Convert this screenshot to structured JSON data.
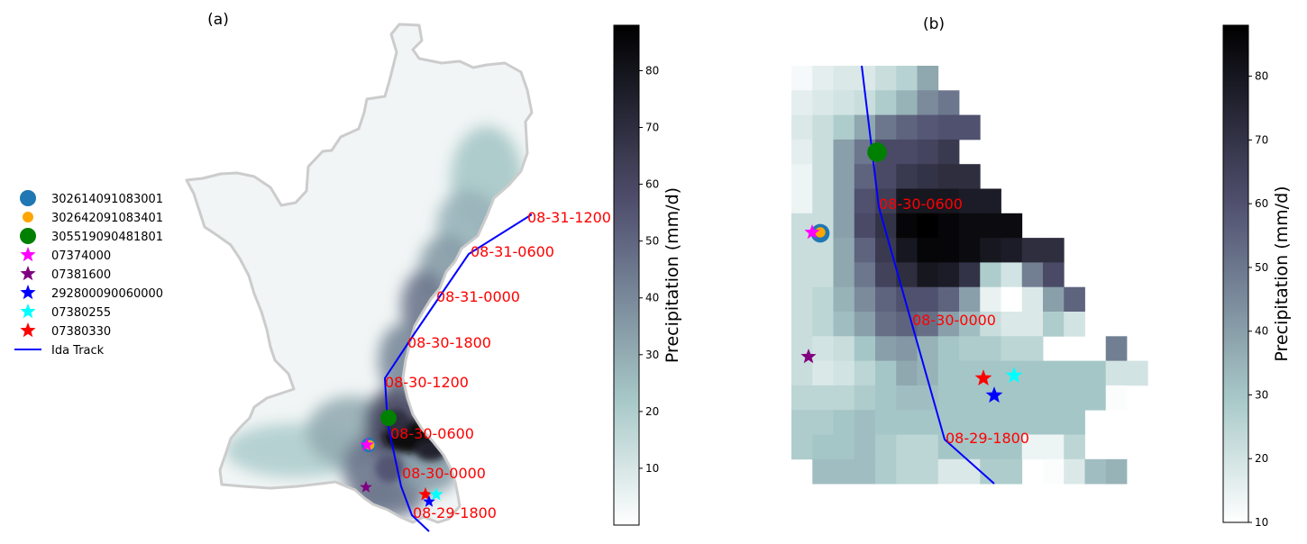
{
  "colors": {
    "track": "#0000ff",
    "track_label": "#ff0000",
    "basin_outline": "#cccccc",
    "colormap": "bone_r"
  },
  "legend": {
    "items": [
      {
        "label": "302614091083001",
        "marker": "circle",
        "color": "#1f77b4",
        "size": "large"
      },
      {
        "label": "302642091083401",
        "marker": "circle",
        "color": "#ffa500",
        "size": "small"
      },
      {
        "label": "305519090481801",
        "marker": "circle",
        "color": "#008000",
        "size": "large"
      },
      {
        "label": "07374000",
        "marker": "star",
        "color": "#ff00ff"
      },
      {
        "label": "07381600",
        "marker": "star",
        "color": "#800080"
      },
      {
        "label": "292800090060000",
        "marker": "star",
        "color": "#0000ff"
      },
      {
        "label": "07380255",
        "marker": "star",
        "color": "#00ffff"
      },
      {
        "label": "07380330",
        "marker": "star",
        "color": "#ff0000"
      },
      {
        "label": "Ida Track",
        "marker": "line",
        "color": "#0000ff"
      }
    ]
  },
  "panel_a": {
    "title": "(a)",
    "track_labels": [
      "08-31-1200",
      "08-31-0600",
      "08-31-0000",
      "08-30-1800",
      "08-30-1200",
      "08-30-0600",
      "08-30-0000",
      "08-29-1800"
    ],
    "colorbar": {
      "label": "Precipitation (mm/d)",
      "ticks": [
        "10",
        "20",
        "30",
        "40",
        "50",
        "60",
        "70",
        "80"
      ],
      "range": [
        0,
        88
      ]
    }
  },
  "panel_b": {
    "title": "(b)",
    "track_labels": [
      "08-30-0600",
      "08-30-0000",
      "08-29-1800"
    ],
    "colorbar": {
      "label": "Precipitation (mm/d)",
      "ticks": [
        "10",
        "20",
        "30",
        "40",
        "50",
        "60",
        "70",
        "80"
      ],
      "range": [
        10,
        88
      ]
    },
    "grid_values_mm_per_day": [
      [
        12,
        16,
        18,
        18,
        22,
        26,
        38,
        null,
        null,
        null,
        null,
        null,
        null,
        null,
        null,
        null,
        null
      ],
      [
        16,
        18,
        20,
        22,
        28,
        35,
        45,
        50,
        null,
        null,
        null,
        null,
        null,
        null,
        null,
        null,
        null
      ],
      [
        18,
        22,
        28,
        38,
        50,
        55,
        58,
        60,
        60,
        null,
        null,
        null,
        null,
        null,
        null,
        null,
        null
      ],
      [
        16,
        22,
        40,
        50,
        62,
        62,
        64,
        68,
        null,
        null,
        null,
        null,
        null,
        null,
        null,
        null,
        null
      ],
      [
        14,
        22,
        40,
        55,
        62,
        68,
        70,
        72,
        72,
        null,
        null,
        null,
        null,
        null,
        null,
        null,
        null
      ],
      [
        14,
        22,
        40,
        60,
        66,
        80,
        80,
        80,
        78,
        78,
        null,
        null,
        null,
        null,
        null,
        null,
        null
      ],
      [
        22,
        22,
        40,
        62,
        70,
        86,
        88,
        86,
        84,
        84,
        84,
        null,
        null,
        null,
        null,
        null,
        null
      ],
      [
        22,
        22,
        38,
        55,
        68,
        80,
        86,
        86,
        84,
        80,
        78,
        72,
        72,
        null,
        null,
        null,
        null
      ],
      [
        22,
        22,
        38,
        50,
        65,
        72,
        80,
        78,
        70,
        28,
        20,
        48,
        62,
        null,
        null,
        null,
        null
      ],
      [
        22,
        25,
        35,
        45,
        55,
        60,
        60,
        55,
        40,
        15,
        10,
        18,
        40,
        55,
        null,
        null,
        null
      ],
      [
        22,
        25,
        32,
        40,
        52,
        55,
        52,
        40,
        32,
        22,
        18,
        18,
        28,
        20,
        null,
        null,
        null
      ],
      [
        22,
        20,
        22,
        30,
        40,
        42,
        35,
        30,
        28,
        28,
        25,
        25,
        null,
        null,
        null,
        48,
        null
      ],
      [
        22,
        18,
        20,
        25,
        30,
        38,
        35,
        30,
        30,
        30,
        30,
        30,
        30,
        30,
        30,
        20,
        20
      ],
      [
        25,
        25,
        25,
        28,
        30,
        32,
        32,
        30,
        30,
        30,
        30,
        30,
        30,
        30,
        30,
        11,
        null
      ],
      [
        28,
        28,
        30,
        32,
        30,
        30,
        30,
        30,
        30,
        30,
        30,
        30,
        30,
        30,
        null,
        null,
        null
      ],
      [
        28,
        30,
        30,
        32,
        28,
        25,
        25,
        30,
        30,
        30,
        30,
        14,
        14,
        25,
        null,
        null,
        null
      ],
      [
        null,
        32,
        32,
        32,
        28,
        25,
        25,
        18,
        18,
        28,
        28,
        null,
        11,
        18,
        32,
        35,
        null
      ]
    ]
  }
}
